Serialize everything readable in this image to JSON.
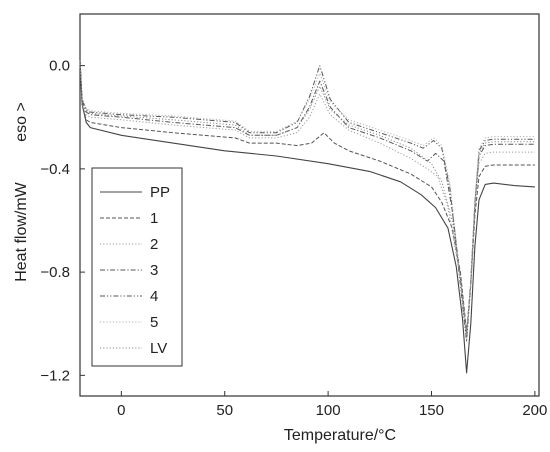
{
  "chart_data": {
    "type": "line",
    "title": "",
    "xlabel": "Temperature/°C",
    "ylabel": "Heat flow/mW",
    "annotation": "eso >",
    "xlim": [
      -20,
      202
    ],
    "ylim": [
      -1.28,
      0.2
    ],
    "xticks": [
      0,
      50,
      100,
      150,
      200
    ],
    "yticks": [
      0.0,
      -0.4,
      -0.8,
      -1.2
    ],
    "xtick_labels": [
      "0",
      "50",
      "100",
      "150",
      "200"
    ],
    "ytick_labels": [
      "0.0",
      "−0.4",
      "−0.8",
      "−1.2"
    ],
    "grid": false,
    "legend_position": "bottom-left",
    "series": [
      {
        "name": "PP",
        "line_style": "solid",
        "color": "#444444",
        "x": [
          -20,
          -19,
          -17,
          -15,
          0,
          25,
          50,
          75,
          100,
          120,
          135,
          145,
          152,
          158,
          162,
          165,
          167,
          169,
          171,
          173,
          176,
          180,
          190,
          200
        ],
        "y": [
          0.02,
          -0.15,
          -0.22,
          -0.24,
          -0.27,
          -0.3,
          -0.33,
          -0.35,
          -0.38,
          -0.41,
          -0.45,
          -0.5,
          -0.55,
          -0.63,
          -0.78,
          -0.98,
          -1.19,
          -1.0,
          -0.7,
          -0.52,
          -0.46,
          -0.455,
          -0.465,
          -0.47
        ]
      },
      {
        "name": "1",
        "line_style": "dashed",
        "color": "#555555",
        "x": [
          -20,
          -19,
          -17,
          -15,
          0,
          25,
          55,
          62,
          75,
          85,
          92,
          98,
          103,
          110,
          125,
          140,
          150,
          155,
          160,
          164,
          167,
          169,
          171,
          173,
          176,
          180,
          190,
          200
        ],
        "y": [
          0.02,
          -0.15,
          -0.21,
          -0.22,
          -0.24,
          -0.26,
          -0.28,
          -0.3,
          -0.3,
          -0.31,
          -0.3,
          -0.26,
          -0.3,
          -0.33,
          -0.37,
          -0.42,
          -0.47,
          -0.53,
          -0.63,
          -0.8,
          -1.03,
          -0.85,
          -0.58,
          -0.43,
          -0.39,
          -0.385,
          -0.385,
          -0.385
        ]
      },
      {
        "name": "2",
        "line_style": "dotted",
        "color": "#9a9a9a",
        "x": [
          -20,
          -19,
          -17,
          -15,
          0,
          25,
          55,
          62,
          75,
          85,
          91,
          96,
          101,
          110,
          125,
          140,
          148,
          153,
          158,
          163,
          167,
          169,
          171,
          173,
          176,
          180,
          190,
          200
        ],
        "y": [
          0.02,
          -0.15,
          -0.19,
          -0.2,
          -0.21,
          -0.23,
          -0.25,
          -0.28,
          -0.28,
          -0.26,
          -0.2,
          -0.11,
          -0.19,
          -0.25,
          -0.3,
          -0.36,
          -0.4,
          -0.43,
          -0.55,
          -0.78,
          -1.05,
          -0.85,
          -0.55,
          -0.38,
          -0.34,
          -0.335,
          -0.335,
          -0.335
        ]
      },
      {
        "name": "3",
        "line_style": "dashdot",
        "color": "#555555",
        "x": [
          -20,
          -19,
          -17,
          -15,
          0,
          25,
          55,
          62,
          75,
          85,
          91,
          96,
          101,
          110,
          125,
          140,
          148,
          152,
          156,
          160,
          164,
          167,
          169,
          171,
          173,
          176,
          180,
          190,
          200
        ],
        "y": [
          0.02,
          -0.14,
          -0.18,
          -0.19,
          -0.2,
          -0.22,
          -0.24,
          -0.27,
          -0.27,
          -0.24,
          -0.16,
          -0.06,
          -0.16,
          -0.24,
          -0.28,
          -0.33,
          -0.37,
          -0.34,
          -0.37,
          -0.56,
          -0.82,
          -1.05,
          -0.83,
          -0.53,
          -0.35,
          -0.31,
          -0.305,
          -0.305,
          -0.305
        ]
      },
      {
        "name": "4",
        "line_style": "dashdotdot",
        "color": "#555555",
        "x": [
          -20,
          -19,
          -17,
          -15,
          0,
          25,
          55,
          62,
          75,
          85,
          91,
          96,
          101,
          110,
          125,
          140,
          146,
          151,
          155,
          159,
          163,
          167,
          169,
          171,
          173,
          176,
          180,
          190,
          200
        ],
        "y": [
          0.02,
          -0.13,
          -0.17,
          -0.18,
          -0.19,
          -0.2,
          -0.22,
          -0.26,
          -0.26,
          -0.22,
          -0.12,
          0.0,
          -0.13,
          -0.22,
          -0.26,
          -0.3,
          -0.32,
          -0.29,
          -0.32,
          -0.48,
          -0.78,
          -1.07,
          -0.85,
          -0.53,
          -0.33,
          -0.29,
          -0.285,
          -0.285,
          -0.285
        ]
      },
      {
        "name": "5",
        "line_style": "dotted",
        "color": "#b0b0b0",
        "x": [
          -20,
          -19,
          -17,
          -15,
          0,
          25,
          55,
          62,
          75,
          85,
          91,
          96,
          101,
          110,
          125,
          140,
          146,
          151,
          155,
          159,
          163,
          167,
          169,
          171,
          173,
          176,
          180,
          190,
          200
        ],
        "y": [
          0.02,
          -0.13,
          -0.165,
          -0.175,
          -0.185,
          -0.195,
          -0.215,
          -0.255,
          -0.255,
          -0.215,
          -0.13,
          -0.03,
          -0.14,
          -0.21,
          -0.25,
          -0.29,
          -0.31,
          -0.28,
          -0.31,
          -0.46,
          -0.76,
          -1.06,
          -0.84,
          -0.52,
          -0.32,
          -0.28,
          -0.275,
          -0.275,
          -0.275
        ]
      },
      {
        "name": "LV",
        "line_style": "dotted",
        "color": "#888888",
        "x": [
          -20,
          -19,
          -17,
          -15,
          0,
          25,
          55,
          62,
          75,
          85,
          91,
          96,
          101,
          110,
          125,
          140,
          150,
          155,
          160,
          164,
          167,
          169,
          171,
          173,
          176,
          180,
          190,
          200
        ],
        "y": [
          0.02,
          -0.14,
          -0.175,
          -0.185,
          -0.195,
          -0.21,
          -0.23,
          -0.27,
          -0.27,
          -0.24,
          -0.17,
          -0.08,
          -0.17,
          -0.23,
          -0.27,
          -0.32,
          -0.38,
          -0.45,
          -0.6,
          -0.82,
          -1.04,
          -0.84,
          -0.54,
          -0.34,
          -0.3,
          -0.295,
          -0.295,
          -0.295
        ]
      }
    ]
  }
}
